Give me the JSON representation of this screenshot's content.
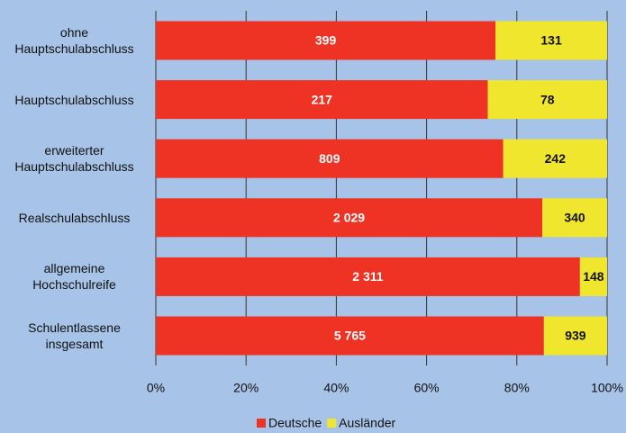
{
  "chart_data": {
    "type": "bar",
    "orientation": "horizontal",
    "stacking": "percent",
    "categories": [
      "ohne\nHauptschulabschluss",
      "Hauptschulabschluss",
      "erweiterter\nHauptschulabschluss",
      "Realschulabschluss",
      "allgemeine\nHochschulreife",
      "Schulentlassene\ninsgesamt"
    ],
    "series": [
      {
        "name": "Deutsche",
        "color": "#ee3224",
        "values": [
          399,
          217,
          809,
          2029,
          2311,
          5765
        ],
        "value_labels": [
          "399",
          "217",
          "809",
          "2 029",
          "2 311",
          "5 765"
        ]
      },
      {
        "name": "Ausländer",
        "color": "#f0e62e",
        "values": [
          131,
          78,
          242,
          340,
          148,
          939
        ],
        "value_labels": [
          "131",
          "78",
          "242",
          "340",
          "148",
          "939"
        ]
      }
    ],
    "xlim": [
      0,
      100
    ],
    "xticks": [
      {
        "value": 0,
        "label": "0%"
      },
      {
        "value": 20,
        "label": "20%"
      },
      {
        "value": 40,
        "label": "40%"
      },
      {
        "value": 60,
        "label": "60%"
      },
      {
        "value": 80,
        "label": "80%"
      },
      {
        "value": 100,
        "label": "100%"
      }
    ],
    "grid": true,
    "legend": "bottom"
  }
}
